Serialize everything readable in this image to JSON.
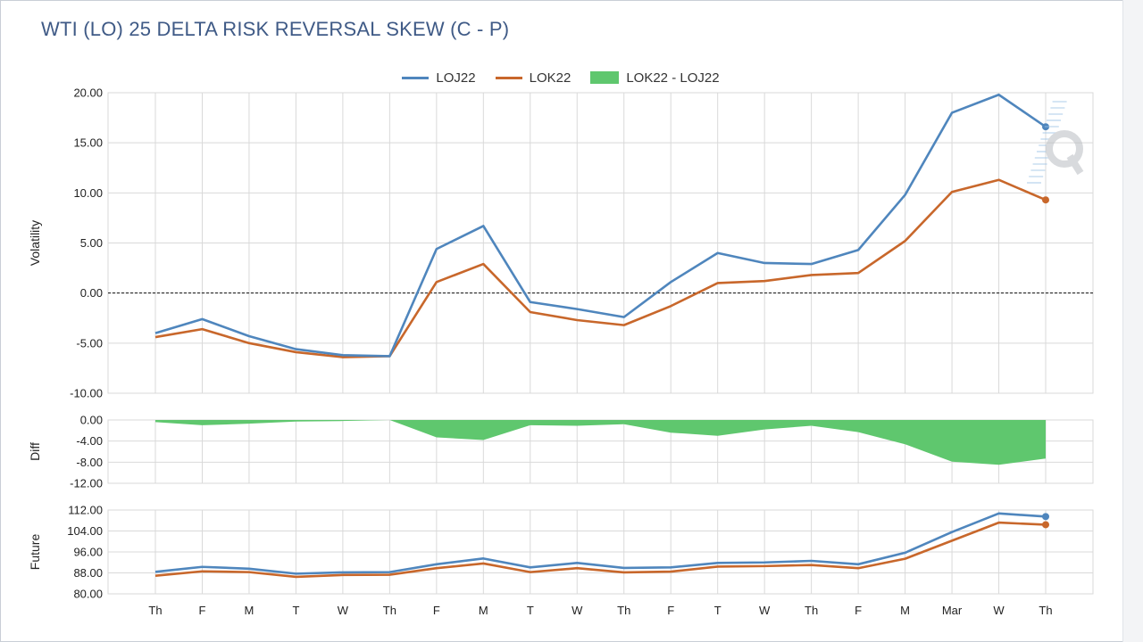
{
  "title": "WTI (LO) 25 DELTA RISK REVERSAL SKEW (C - P)",
  "colors": {
    "series1": "#4f86bd",
    "series2": "#c8672b",
    "diff": "#5fc76e",
    "grid": "#d9d9d9"
  },
  "legend": [
    {
      "label": "LOJ22",
      "kind": "line",
      "color": "#4f86bd"
    },
    {
      "label": "LOK22",
      "kind": "line",
      "color": "#c8672b"
    },
    {
      "label": "LOK22 - LOJ22",
      "kind": "area",
      "color": "#5fc76e"
    }
  ],
  "watermark_icon": "q-logo-icon",
  "chart_data": [
    {
      "type": "line",
      "ylabel": "Volatility",
      "ylim": [
        -10,
        20
      ],
      "yticks": [
        "20.00",
        "15.00",
        "10.00",
        "5.00",
        "0.00",
        "-5.00",
        "-10.00"
      ],
      "reference_line": 0,
      "categories": [
        "Th",
        "F",
        "M",
        "T",
        "W",
        "Th",
        "F",
        "M",
        "T",
        "W",
        "Th",
        "F",
        "T",
        "W",
        "Th",
        "F",
        "M",
        "Mar",
        "W",
        "Th"
      ],
      "series": [
        {
          "name": "LOJ22",
          "values": [
            -4.0,
            -2.6,
            -4.3,
            -5.6,
            -6.2,
            -6.3,
            4.4,
            6.7,
            -0.9,
            -1.6,
            -2.4,
            1.1,
            4.0,
            3.0,
            2.9,
            4.3,
            9.8,
            18.0,
            19.8,
            16.6
          ]
        },
        {
          "name": "LOK22",
          "values": [
            -4.4,
            -3.6,
            -5.0,
            -5.9,
            -6.4,
            -6.3,
            1.1,
            2.9,
            -1.9,
            -2.7,
            -3.2,
            -1.3,
            1.0,
            1.2,
            1.8,
            2.0,
            5.2,
            10.1,
            11.3,
            9.3
          ]
        }
      ]
    },
    {
      "type": "area",
      "ylabel": "Diff",
      "ylim": [
        -12,
        0
      ],
      "yticks": [
        "0.00",
        "-4.00",
        "-8.00",
        "-12.00"
      ],
      "categories": [
        "Th",
        "F",
        "M",
        "T",
        "W",
        "Th",
        "F",
        "M",
        "T",
        "W",
        "Th",
        "F",
        "T",
        "W",
        "Th",
        "F",
        "M",
        "Mar",
        "W",
        "Th"
      ],
      "series": [
        {
          "name": "LOK22 - LOJ22",
          "values": [
            -0.4,
            -1.0,
            -0.7,
            -0.3,
            -0.2,
            0.0,
            -3.3,
            -3.8,
            -1.0,
            -1.1,
            -0.8,
            -2.4,
            -3.0,
            -1.8,
            -1.1,
            -2.3,
            -4.6,
            -7.9,
            -8.5,
            -7.3
          ]
        }
      ]
    },
    {
      "type": "line",
      "ylabel": "Future",
      "ylim": [
        80,
        112
      ],
      "yticks": [
        "112.00",
        "104.00",
        "96.00",
        "88.00",
        "80.00"
      ],
      "categories": [
        "Th",
        "F",
        "M",
        "T",
        "W",
        "Th",
        "F",
        "M",
        "T",
        "W",
        "Th",
        "F",
        "T",
        "W",
        "Th",
        "F",
        "M",
        "Mar",
        "W",
        "Th"
      ],
      "series": [
        {
          "name": "LOJ22",
          "values": [
            88.4,
            90.3,
            89.6,
            87.7,
            88.2,
            88.3,
            91.3,
            93.5,
            90.1,
            91.8,
            89.9,
            90.1,
            91.8,
            92.0,
            92.6,
            91.3,
            95.7,
            103.6,
            110.7,
            109.5
          ]
        },
        {
          "name": "LOK22",
          "values": [
            86.9,
            88.6,
            88.3,
            86.5,
            87.2,
            87.3,
            89.8,
            91.6,
            88.3,
            89.8,
            88.2,
            88.5,
            90.4,
            90.6,
            91.0,
            89.8,
            93.4,
            100.3,
            107.2,
            106.4
          ]
        }
      ]
    }
  ]
}
